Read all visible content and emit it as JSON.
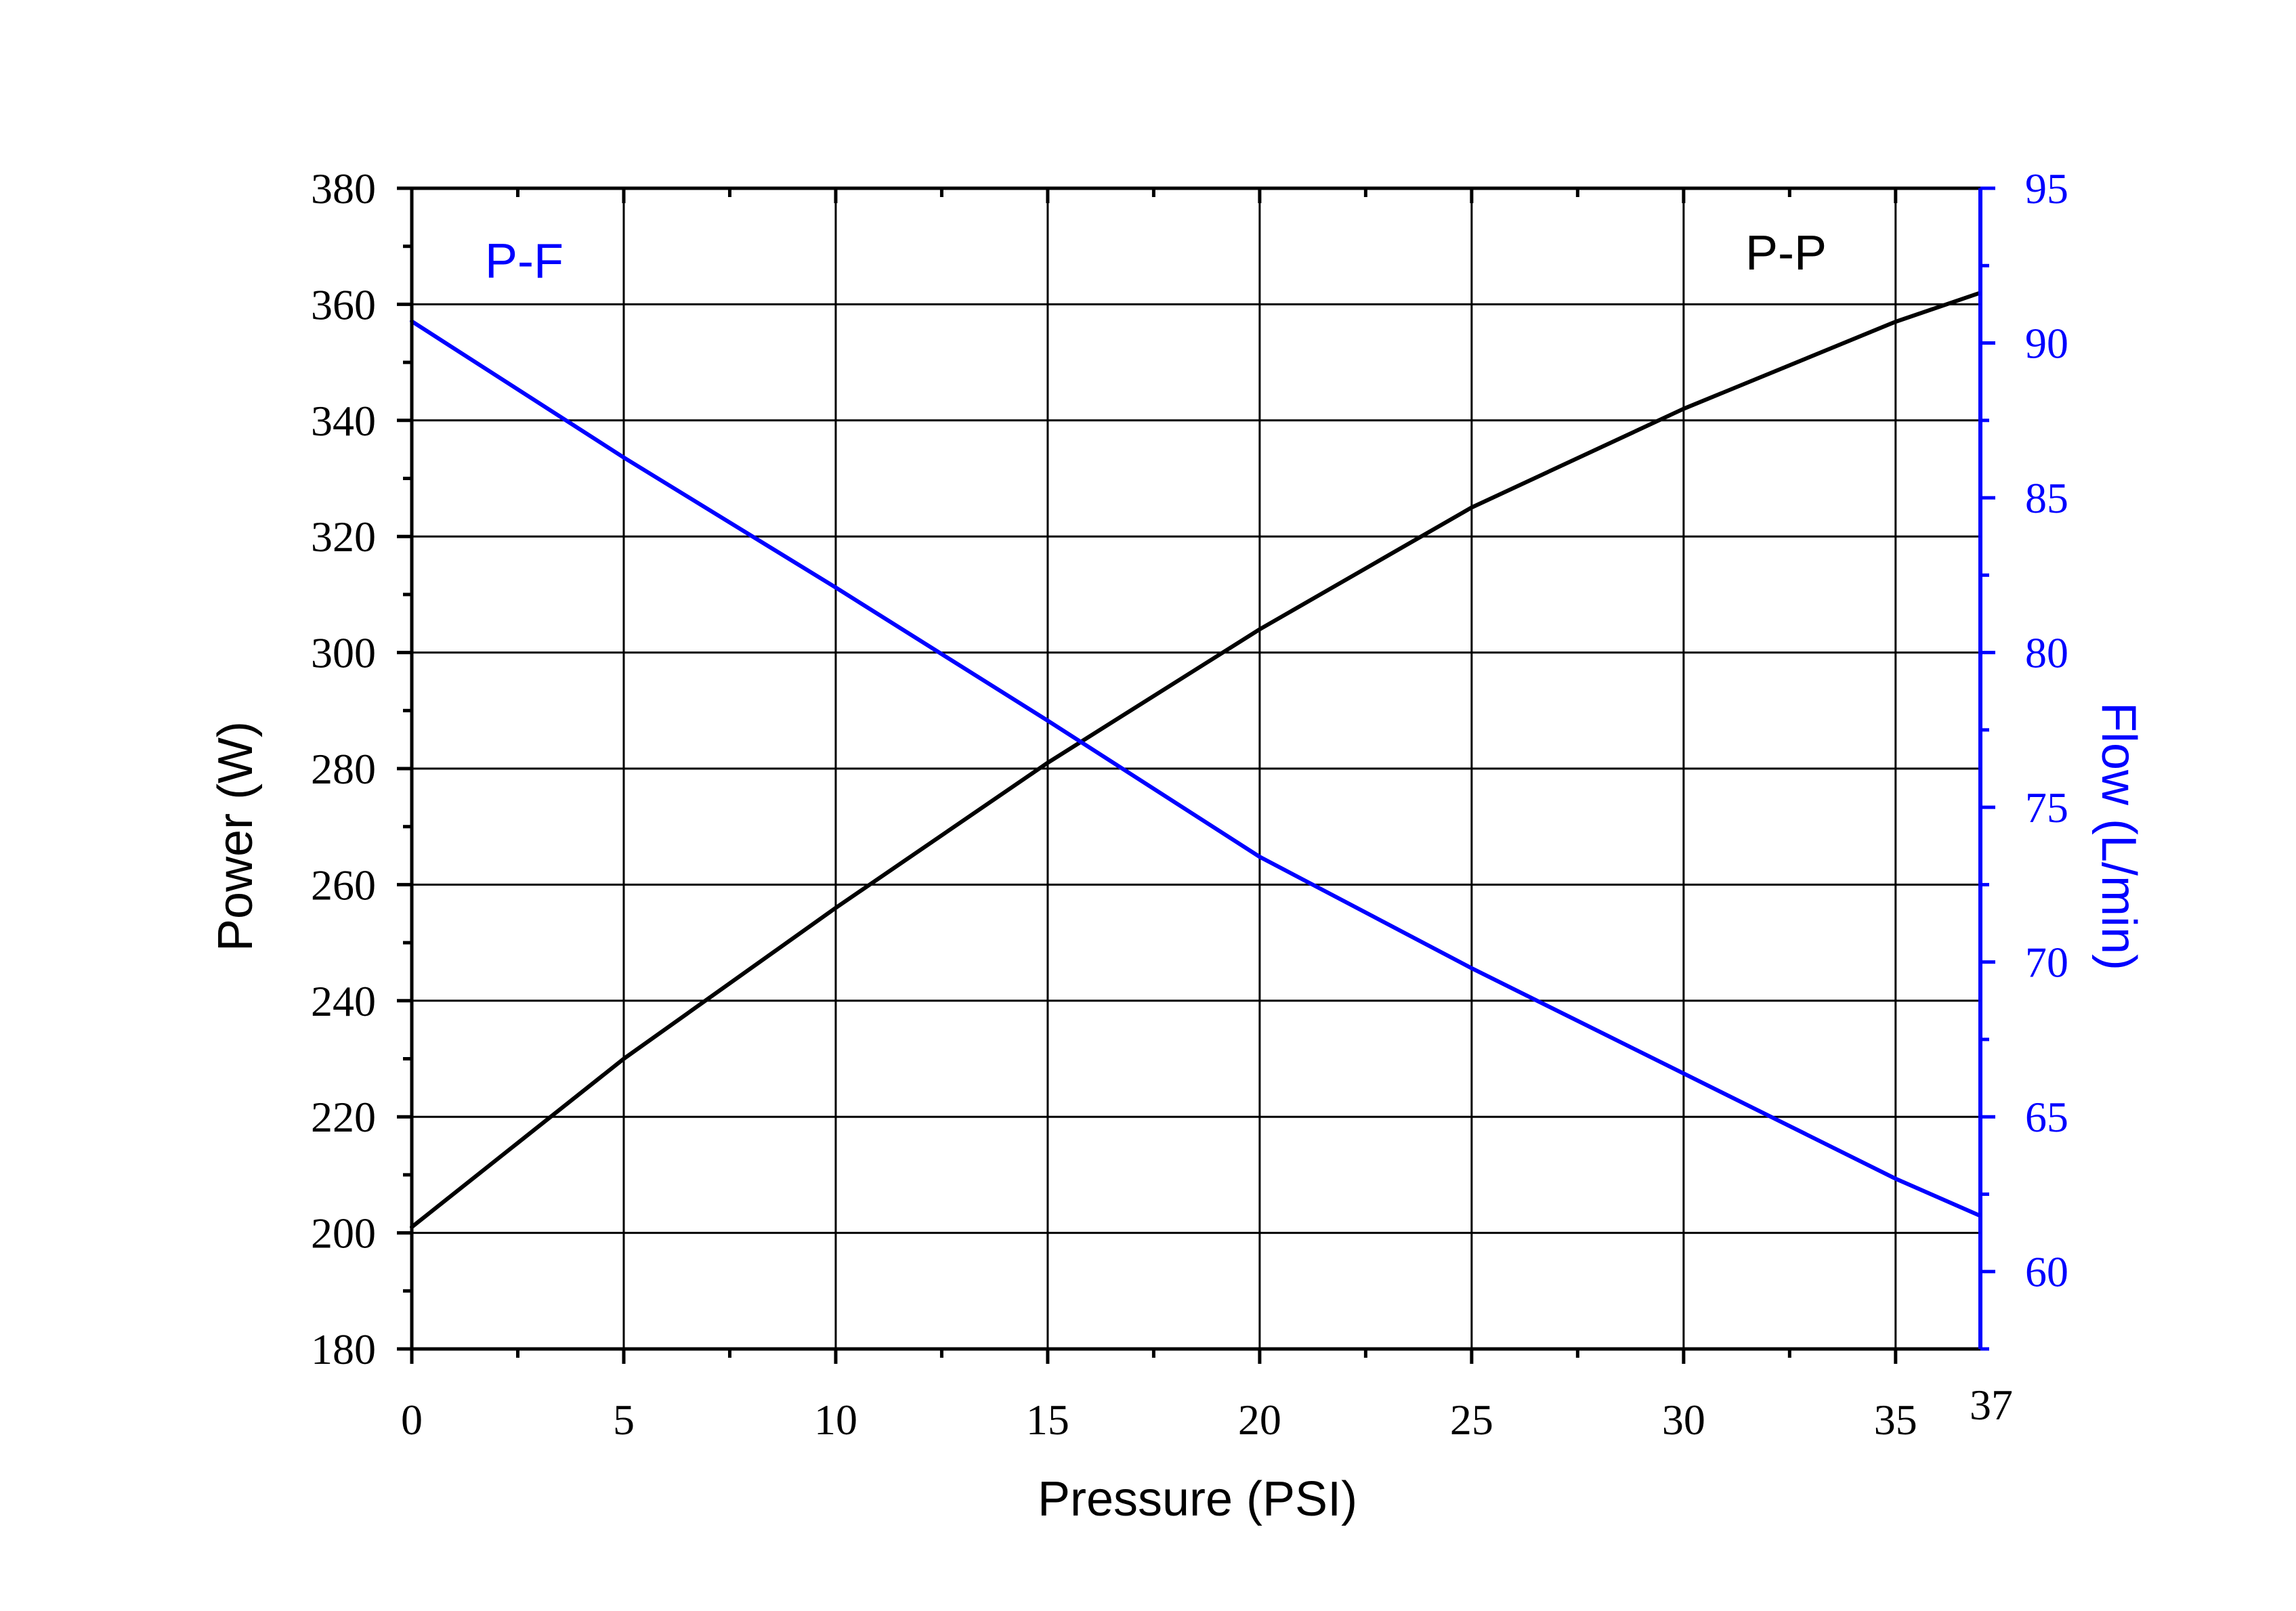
{
  "colors": {
    "power": "#000000",
    "flow": "#0000ff",
    "grid": "#000000",
    "background": "#ffffff"
  },
  "chart_data": {
    "type": "line",
    "xlabel": "Pressure (PSI)",
    "ylabel": "Power (W)",
    "y2label": "Flow (L/min)",
    "xlim": [
      0,
      37
    ],
    "ylim": [
      180,
      380
    ],
    "y2lim": [
      57.5,
      95
    ],
    "xticks": [
      "0",
      "5",
      "10",
      "15",
      "20",
      "25",
      "30",
      "35",
      "37"
    ],
    "yticks": [
      "180",
      "200",
      "220",
      "240",
      "260",
      "280",
      "300",
      "320",
      "340",
      "360",
      "380"
    ],
    "y2ticks": [
      "60",
      "65",
      "70",
      "75",
      "80",
      "85",
      "90",
      "95"
    ],
    "grid": true,
    "annotations": {
      "flow_label": "P-F",
      "power_label": "P-P"
    },
    "series": [
      {
        "axis": "left",
        "x": [
          0,
          5,
          10,
          15,
          20,
          25,
          30,
          35,
          37
        ],
        "values": [
          201,
          230,
          256,
          281,
          304,
          325,
          342,
          357,
          362
        ]
      },
      {
        "axis": "right",
        "x": [
          0,
          5,
          10,
          15,
          20,
          25,
          30,
          35,
          37
        ],
        "values": [
          90.7,
          86.3,
          82.1,
          77.8,
          73.4,
          69.8,
          66.4,
          63.0,
          61.8
        ]
      }
    ]
  }
}
